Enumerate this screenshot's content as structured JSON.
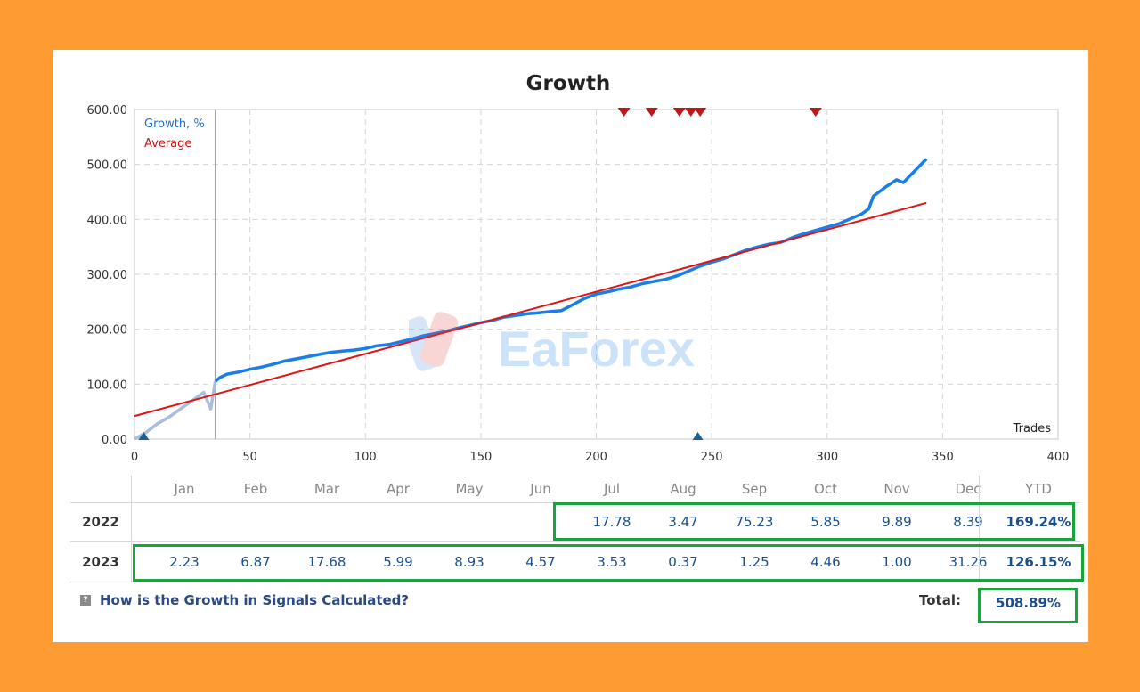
{
  "chart_data": {
    "type": "line",
    "title": "Growth",
    "xlabel": "Trades",
    "ylabel": "",
    "xlim": [
      0,
      400
    ],
    "ylim": [
      0,
      600
    ],
    "x_ticks": [
      "0",
      "50",
      "100",
      "150",
      "200",
      "250",
      "300",
      "350",
      "400"
    ],
    "y_ticks": [
      "0.00",
      "100.00",
      "200.00",
      "300.00",
      "400.00",
      "500.00",
      "600.00"
    ],
    "grid": true,
    "legend": "top-left",
    "colors": {
      "growth": "#1a7ee8",
      "growth_pre": "#a9bfd9",
      "average": "#e01414",
      "marker_red": "#c01818",
      "marker_blue": "#1a5e9a"
    },
    "series": [
      {
        "name": "Growth, %",
        "x": [
          0,
          5,
          10,
          15,
          20,
          25,
          30,
          33,
          35,
          37,
          40,
          45,
          50,
          55,
          60,
          65,
          70,
          75,
          80,
          85,
          90,
          95,
          100,
          105,
          110,
          115,
          120,
          125,
          130,
          135,
          140,
          145,
          150,
          155,
          160,
          165,
          170,
          175,
          180,
          185,
          190,
          195,
          200,
          205,
          210,
          215,
          220,
          225,
          230,
          235,
          240,
          245,
          250,
          255,
          260,
          265,
          270,
          275,
          280,
          285,
          290,
          295,
          300,
          305,
          310,
          315,
          318,
          320,
          325,
          330,
          333,
          336,
          340,
          343
        ],
        "values": [
          0,
          12,
          28,
          40,
          55,
          70,
          85,
          55,
          105,
          112,
          118,
          122,
          127,
          131,
          136,
          142,
          146,
          150,
          154,
          158,
          160,
          162,
          165,
          170,
          172,
          177,
          182,
          188,
          192,
          196,
          202,
          207,
          212,
          216,
          222,
          225,
          228,
          230,
          232,
          234,
          245,
          256,
          264,
          268,
          273,
          277,
          283,
          287,
          291,
          297,
          306,
          315,
          322,
          328,
          336,
          344,
          350,
          355,
          358,
          367,
          374,
          380,
          386,
          392,
          401,
          410,
          419,
          442,
          458,
          472,
          467,
          480,
          497,
          510
        ]
      },
      {
        "name": "Average",
        "x": [
          0,
          343
        ],
        "values": [
          42,
          430
        ]
      }
    ],
    "markers_top": [
      212,
      224,
      236,
      241,
      245,
      295
    ],
    "markers_bottom": [
      4,
      244
    ]
  },
  "table": {
    "months": [
      "Jan",
      "Feb",
      "Mar",
      "Apr",
      "May",
      "Jun",
      "Jul",
      "Aug",
      "Sep",
      "Oct",
      "Nov",
      "Dec"
    ],
    "ytd_header": "YTD",
    "rows": [
      {
        "year": "2022",
        "values": [
          "",
          "",
          "",
          "",
          "",
          "",
          "17.78",
          "3.47",
          "75.23",
          "5.85",
          "9.89",
          "8.39"
        ],
        "ytd": "169.24%"
      },
      {
        "year": "2023",
        "values": [
          "2.23",
          "6.87",
          "17.68",
          "5.99",
          "8.93",
          "4.57",
          "3.53",
          "0.37",
          "1.25",
          "4.46",
          "1.00",
          "31.26"
        ],
        "ytd": "126.15%"
      }
    ],
    "total_label": "Total:",
    "total_value": "508.89%"
  },
  "help_link": "How is the Growth in Signals Calculated?",
  "help_icon": "question-icon",
  "watermark_text": "EaForex",
  "highlight_color": "#1aa33a"
}
